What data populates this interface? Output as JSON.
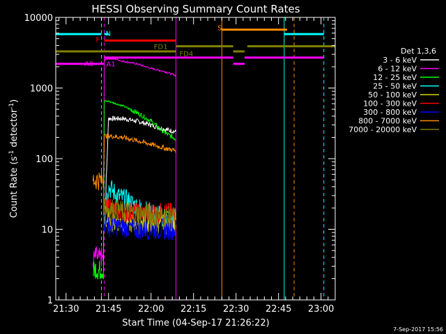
{
  "chart_data": {
    "type": "line",
    "title": "HESSI Observing Summary Count Rates",
    "xlabel": "Start Time (04-Sep-17 21:26:22)",
    "ylabel": "Count Rate (s",
    "ylabel_sup1": "-1",
    "ylabel_mid": " detector",
    "ylabel_sup2": "-1",
    "ylabel_end": ")",
    "y_scale": "log",
    "ylim": [
      1,
      10000
    ],
    "xlim_minutes": [
      1286.37,
      1385.0
    ],
    "x_ticks": [
      {
        "t": 1290,
        "label": "21:30"
      },
      {
        "t": 1305,
        "label": "21:45"
      },
      {
        "t": 1320,
        "label": "22:00"
      },
      {
        "t": 1335,
        "label": "22:15"
      },
      {
        "t": 1350,
        "label": "22:30"
      },
      {
        "t": 1365,
        "label": "22:45"
      },
      {
        "t": 1380,
        "label": "23:00"
      }
    ],
    "y_ticks": [
      {
        "v": 1,
        "label": "1"
      },
      {
        "v": 10,
        "label": "10"
      },
      {
        "v": 100,
        "label": "100"
      },
      {
        "v": 1000,
        "label": "1000"
      },
      {
        "v": 10000,
        "label": "10000"
      }
    ],
    "legend_title": "Det 1,3,6",
    "legend_position": "right",
    "series": [
      {
        "name": "3 - 6 keV",
        "color": "#ffffff",
        "x": [
          1299.5,
          1302.5,
          1303.2,
          1304.0,
          1305.0,
          1310.0,
          1315.0,
          1320.0,
          1325.0,
          1328.8
        ],
        "y": [
          null,
          null,
          28,
          28,
          370,
          370,
          340,
          300,
          260,
          240
        ]
      },
      {
        "name": "6 - 12 keV",
        "color": "#ff00ff",
        "x": [
          1299.5,
          1300.5,
          1301.5,
          1302.5,
          1303.2,
          1303.5,
          1305.0,
          1307.0,
          1310.0,
          1315.0,
          1320.0,
          1325.0,
          1328.8
        ],
        "y": [
          3.5,
          4.2,
          3.8,
          4.0,
          3.8,
          2500,
          2600,
          2600,
          2400,
          2200,
          1900,
          1700,
          1500
        ]
      },
      {
        "name": "12 - 25 keV",
        "color": "#00ff00",
        "x": [
          1299.5,
          1300.5,
          1301.5,
          1302.5,
          1303.2,
          1303.5,
          1305.0,
          1310.0,
          1315.0,
          1320.0,
          1325.0,
          1328.8
        ],
        "y": [
          2.5,
          2.8,
          2.6,
          2.7,
          2.6,
          650,
          650,
          560,
          450,
          340,
          230,
          190
        ]
      },
      {
        "name": "25 - 50 keV",
        "color": "#00ffff",
        "x": [
          1299.5,
          1302.5,
          1303.5,
          1305.0,
          1308.0,
          1312.0,
          1316.0,
          1320.0,
          1325.0,
          1328.8
        ],
        "y": [
          null,
          null,
          15,
          40,
          30,
          25,
          20,
          17,
          15,
          14
        ]
      },
      {
        "name": "50 - 100 keV",
        "color": "#d7d700",
        "x": [
          1299.5,
          1302.5,
          1303.5,
          1305.0,
          1310.0,
          1315.0,
          1320.0,
          1325.0,
          1328.8
        ],
        "y": [
          null,
          null,
          14,
          13,
          13,
          12,
          12,
          12,
          12
        ]
      },
      {
        "name": "100 - 300 keV",
        "color": "#ff0000",
        "x": [
          1299.5,
          1302.5,
          1303.5,
          1305.0,
          1310.0,
          1315.0,
          1320.0,
          1325.0,
          1328.8
        ],
        "y": [
          null,
          null,
          21,
          20,
          18,
          17,
          17,
          17,
          17
        ]
      },
      {
        "name": "300 - 800 keV",
        "color": "#0000ff",
        "x": [
          1299.5,
          1302.5,
          1303.2,
          1305.0,
          1310.0,
          1315.0,
          1320.0,
          1325.0,
          1328.8
        ],
        "y": [
          null,
          null,
          13,
          11,
          11,
          10,
          10,
          10,
          10
        ]
      },
      {
        "name": "800 - 7000 keV",
        "color": "#ff8c00",
        "x": [
          1299.5,
          1302.5,
          1303.2,
          1303.5,
          1305.0,
          1310.0,
          1315.0,
          1320.0,
          1325.0,
          1328.8
        ],
        "y": [
          50,
          50,
          50,
          210,
          210,
          200,
          180,
          160,
          140,
          130
        ]
      },
      {
        "name": "7000 - 20000 keV",
        "color": "#808000",
        "x": [
          1299.5,
          1302.5,
          1303.2,
          1305.0,
          1310.0,
          1315.0,
          1320.0,
          1325.0,
          1328.8
        ],
        "y": [
          null,
          null,
          22,
          20,
          18,
          17,
          16,
          15,
          15
        ]
      }
    ],
    "flag_bars": [
      {
        "label": "N",
        "color": "#00ffff",
        "y": 5800,
        "segments": [
          [
            1286.37,
            1302.5
          ],
          [
            1303.5,
            1305.0
          ],
          [
            1367.0,
            1381.0
          ]
        ]
      },
      {
        "label": "F",
        "color": "#ff0000",
        "y": 4700,
        "segments": [
          [
            1303.5,
            1328.8
          ]
        ]
      },
      {
        "label": "S",
        "color": "#ff8c00",
        "y": 6700,
        "segments": [
          [
            1345.0,
            1368.0
          ]
        ]
      },
      {
        "label": "FD1",
        "color": "#808000",
        "y": 3900,
        "segments": [
          [
            1328.8,
            1349.0
          ],
          [
            1354.0,
            1385.0
          ]
        ]
      },
      {
        "label": "FD4",
        "color": "#808000",
        "y": 3300,
        "segments": [
          [
            1286.37,
            1328.8
          ],
          [
            1349.0,
            1353.0
          ]
        ]
      },
      {
        "label": "A0",
        "color": "#ff00ff",
        "y": 2200,
        "segments": [
          [
            1286.37,
            1303.5
          ],
          [
            1349.0,
            1353.0
          ]
        ]
      },
      {
        "label": "A1",
        "color": "#ff00ff",
        "y": 2700,
        "segments": [
          [
            1303.5,
            1349.0
          ],
          [
            1353.0,
            1381.0
          ]
        ]
      }
    ],
    "flag_labels": [
      {
        "text": "N",
        "color": "#00ffff",
        "t": 1304.0,
        "y": 6000
      },
      {
        "text": "F",
        "color": "#ff0000",
        "t": 1300.5,
        "y": 4900
      },
      {
        "text": "S",
        "color": "#ff8c00",
        "t": 1343.5,
        "y": 7200
      },
      {
        "text": "FD1",
        "color": "#808000",
        "t": 1321.0,
        "y": 3900
      },
      {
        "text": "FD4",
        "color": "#808000",
        "t": 1330.0,
        "y": 3100
      },
      {
        "text": "A0",
        "color": "#ff00ff",
        "t": 1296.5,
        "y": 2250
      },
      {
        "text": "A1",
        "color": "#ff00ff",
        "t": 1304.2,
        "y": 2200
      }
    ],
    "vertical_markers": [
      {
        "t": 1286.37,
        "color": "#00ffff",
        "style": "solid"
      },
      {
        "t": 1302.5,
        "color": "#00ffff",
        "style": "dashed"
      },
      {
        "t": 1303.5,
        "color": "#ff00ff",
        "style": "dashed"
      },
      {
        "t": 1328.8,
        "color": "#ff00ff",
        "style": "solid"
      },
      {
        "t": 1345.0,
        "color": "#ff8c00",
        "style": "solid"
      },
      {
        "t": 1367.0,
        "color": "#00ffff",
        "style": "solid"
      },
      {
        "t": 1370.5,
        "color": "#ff8c00",
        "style": "dashed"
      },
      {
        "t": 1381.0,
        "color": "#00ffff",
        "style": "dashed"
      }
    ],
    "footer_stamp": "7-Sep-2017 15:56"
  }
}
